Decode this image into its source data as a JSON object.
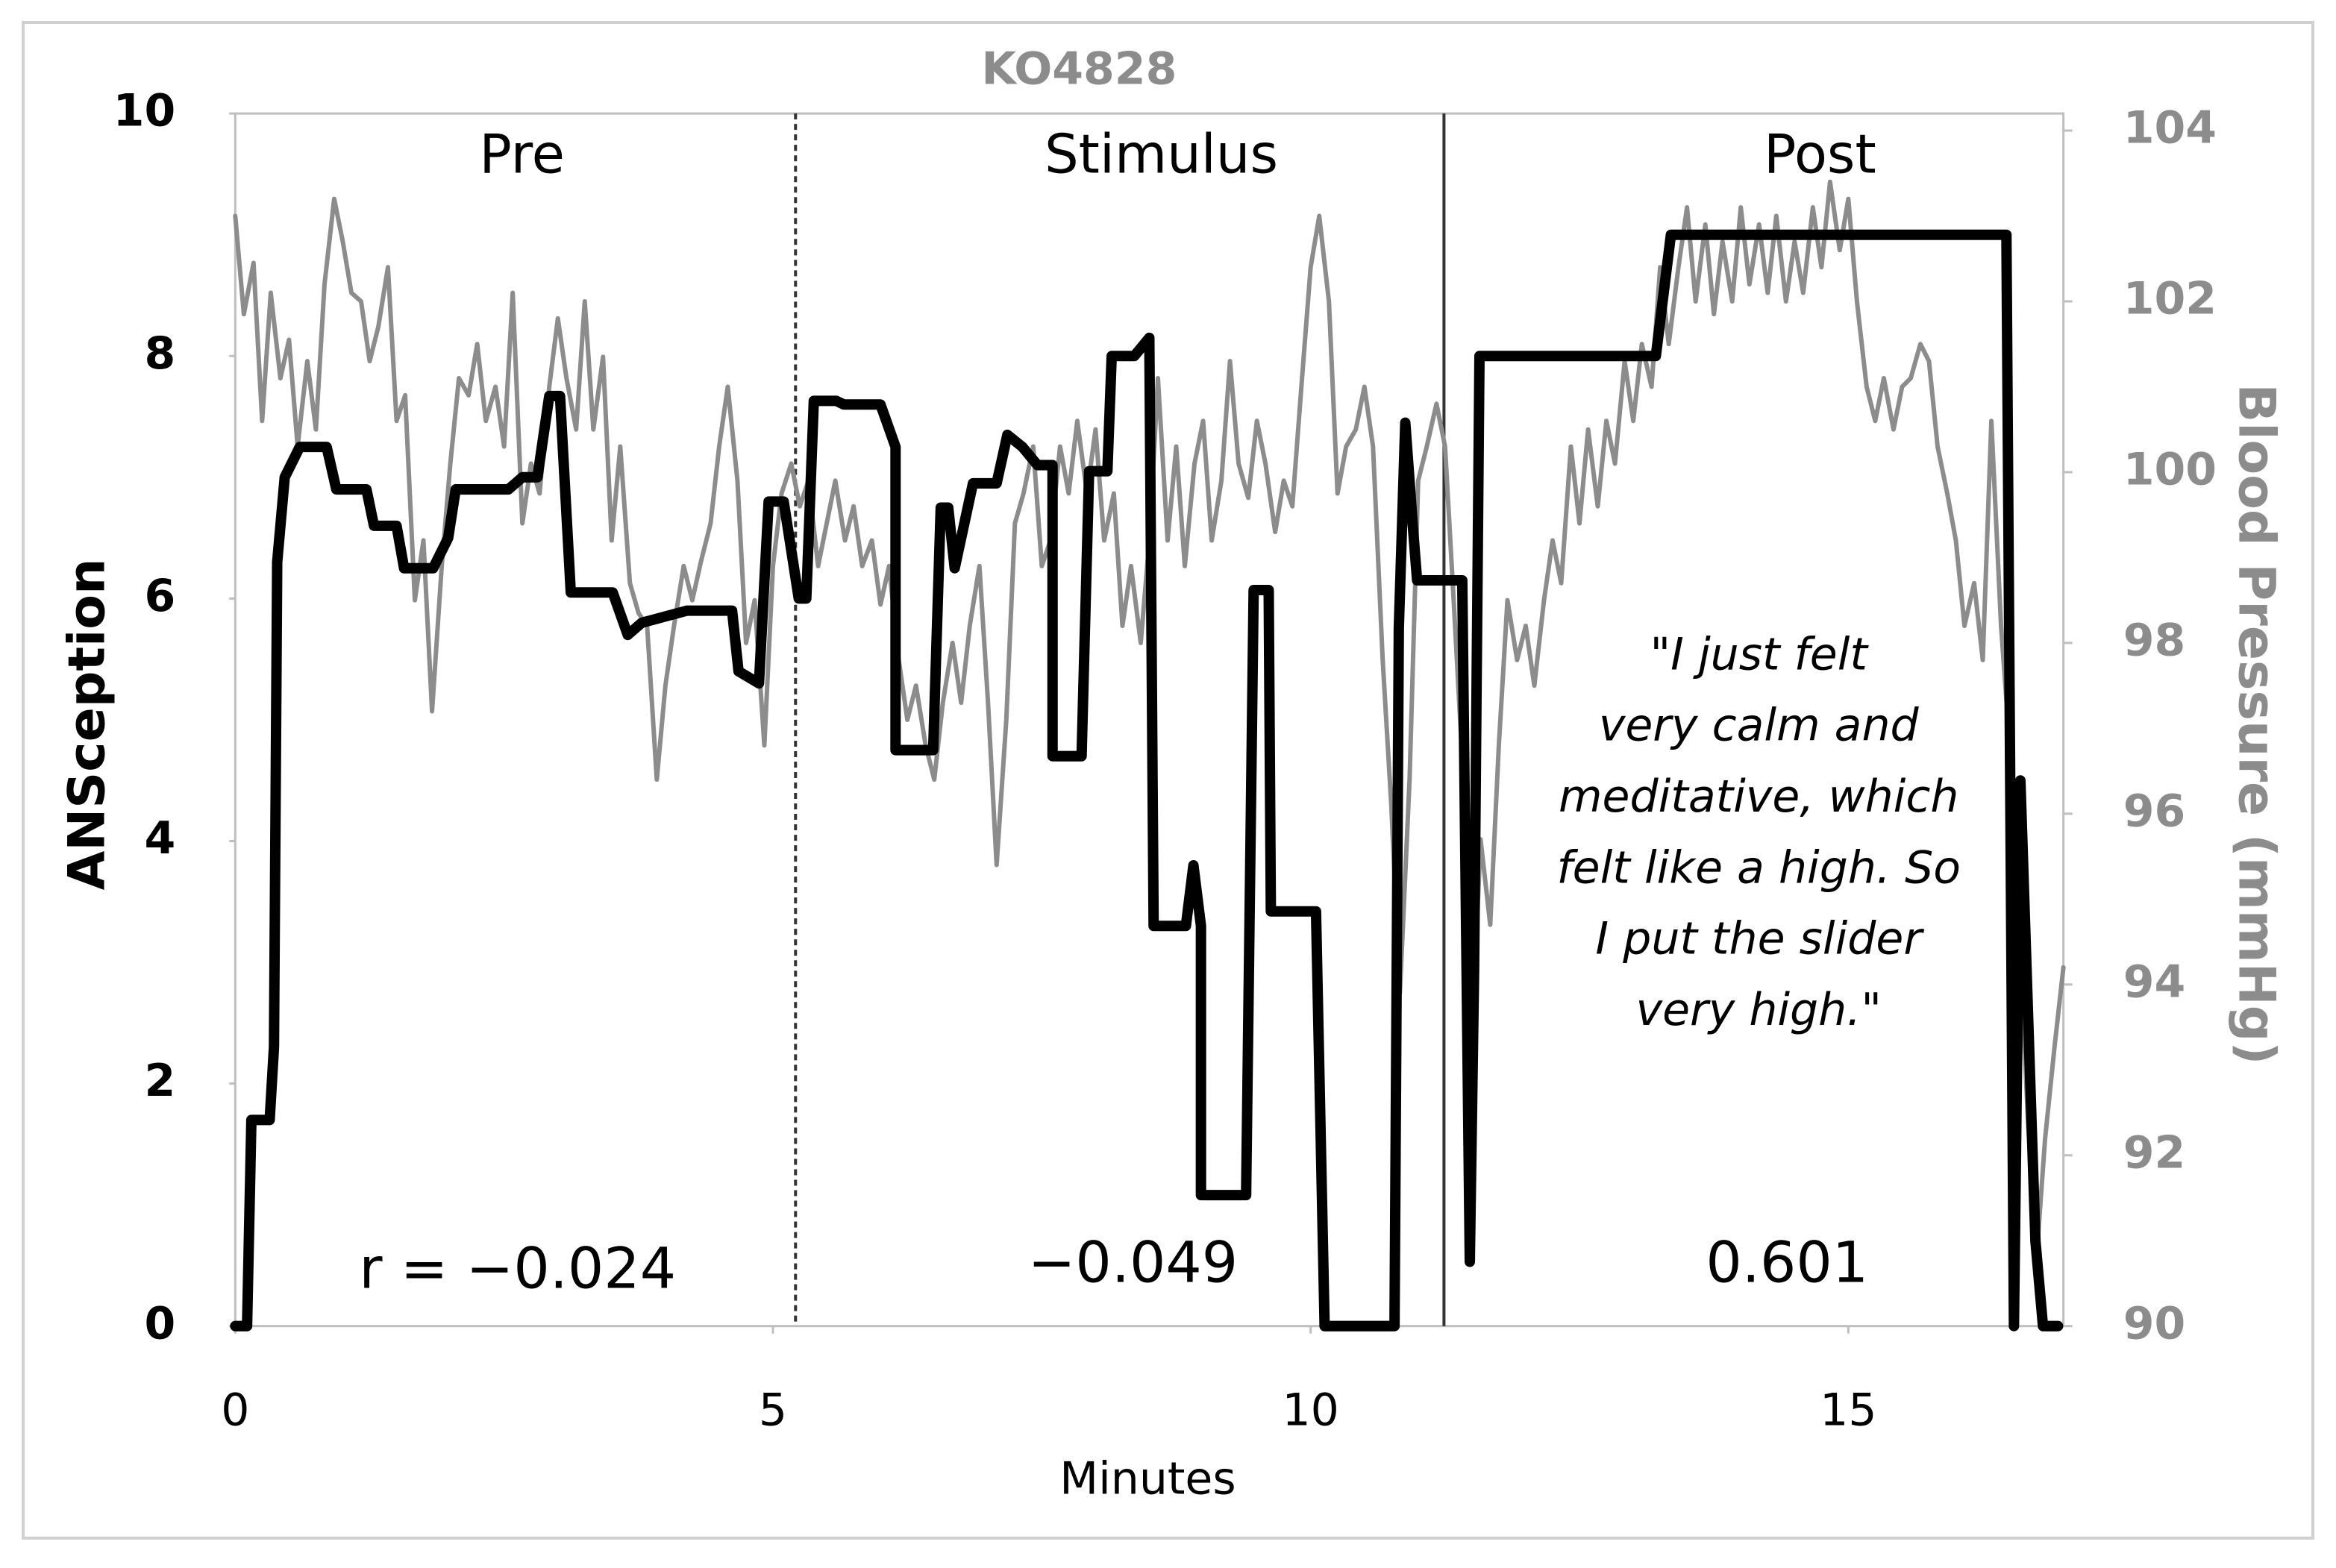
{
  "chart_data": {
    "type": "line",
    "title": "KO4828",
    "xlabel": "Minutes",
    "ylabel": "ANSception",
    "y2label": "Blood Pressure (mmHg)",
    "xlim": [
      0,
      17
    ],
    "xticks": [
      0,
      5,
      10,
      15
    ],
    "ylim": [
      0,
      10
    ],
    "yticks": [
      0,
      2,
      4,
      6,
      8,
      10
    ],
    "y2lim": [
      90,
      104.2
    ],
    "y2ticks": [
      90,
      92,
      94,
      96,
      98,
      100,
      102,
      104
    ],
    "phases": [
      "Pre",
      "Stimulus",
      "Post"
    ],
    "phase_boundaries": [
      5.21,
      11.24
    ],
    "correlations": [
      {
        "value": -0.024,
        "label": "r =  −0.024"
      },
      {
        "value": -0.049,
        "label": "−0.049"
      },
      {
        "value": 0.601,
        "label": "0.601"
      }
    ],
    "quote": [
      "\"I just felt",
      "very calm and",
      "meditative, which",
      "felt like a high. So",
      "I put the slider",
      "very high.\""
    ],
    "series": [
      {
        "color": "#000000",
        "x": [
          0,
          0.11,
          0.15,
          0.32,
          0.36,
          0.39,
          0.46,
          0.6,
          0.85,
          0.94,
          1.22,
          1.29,
          1.5,
          1.57,
          1.84,
          1.98,
          2.05,
          2.54,
          2.67,
          2.81,
          2.92,
          3.02,
          3.12,
          3.51,
          3.65,
          3.78,
          4.2,
          4.62,
          4.68,
          4.87,
          4.96,
          5.1,
          5.24,
          5.31,
          5.38,
          5.59,
          5.66,
          6.0,
          6.14,
          6.14,
          6.49,
          6.56,
          6.63,
          6.69,
          6.86,
          7.08,
          7.18,
          7.32,
          7.46,
          7.6,
          7.6,
          7.87,
          7.94,
          8.11,
          8.15,
          8.36,
          8.5,
          8.54,
          8.84,
          8.91,
          8.98,
          8.98,
          9.4,
          9.47,
          9.61,
          9.63,
          10.05,
          10.13,
          10.78,
          10.82,
          10.88,
          10.95,
          10.99,
          11.41,
          11.48,
          11.52,
          11.57,
          13.21,
          13.35,
          16.47,
          16.54,
          16.6,
          16.74,
          16.81,
          16.95
        ],
        "values": [
          0,
          0,
          1.7,
          1.7,
          2.3,
          6.3,
          7.0,
          7.25,
          7.25,
          6.9,
          6.9,
          6.6,
          6.6,
          6.25,
          6.25,
          6.5,
          6.9,
          6.9,
          7.0,
          7.0,
          7.67,
          7.67,
          6.05,
          6.05,
          5.7,
          5.8,
          5.9,
          5.9,
          5.4,
          5.3,
          6.8,
          6.8,
          6.0,
          6.0,
          7.63,
          7.63,
          7.6,
          7.6,
          7.25,
          4.75,
          4.75,
          6.75,
          6.75,
          6.25,
          6.95,
          6.95,
          7.35,
          7.25,
          7.1,
          7.1,
          4.7,
          4.7,
          7.05,
          7.05,
          8.0,
          8.0,
          8.15,
          3.3,
          3.3,
          3.8,
          3.3,
          1.08,
          1.08,
          6.07,
          6.07,
          3.42,
          3.42,
          0,
          0,
          5.76,
          7.45,
          6.6,
          6.15,
          6.15,
          0.53,
          2.93,
          8.0,
          8.0,
          9.0,
          9.0,
          0,
          4.5,
          0.7,
          0,
          0
        ]
      },
      {
        "color": "#8c8c8c",
        "axis": "y2",
        "x": [
          0,
          0.08,
          0.17,
          0.25,
          0.33,
          0.42,
          0.5,
          0.58,
          0.67,
          0.75,
          0.83,
          0.92,
          1,
          1.08,
          1.17,
          1.25,
          1.33,
          1.42,
          1.5,
          1.58,
          1.67,
          1.75,
          1.83,
          1.92,
          2,
          2.08,
          2.17,
          2.25,
          2.33,
          2.42,
          2.5,
          2.58,
          2.67,
          2.75,
          2.83,
          2.92,
          3,
          3.08,
          3.17,
          3.25,
          3.33,
          3.42,
          3.5,
          3.58,
          3.67,
          3.75,
          3.83,
          3.92,
          4,
          4.08,
          4.17,
          4.25,
          4.33,
          4.42,
          4.5,
          4.58,
          4.67,
          4.75,
          4.83,
          4.92,
          5,
          5.08,
          5.17,
          5.25,
          5.33,
          5.42,
          5.5,
          5.58,
          5.67,
          5.75,
          5.83,
          5.92,
          6,
          6.08,
          6.17,
          6.25,
          6.33,
          6.42,
          6.5,
          6.58,
          6.67,
          6.75,
          6.83,
          6.92,
          7,
          7.08,
          7.17,
          7.25,
          7.33,
          7.42,
          7.5,
          7.58,
          7.67,
          7.75,
          7.83,
          7.92,
          8,
          8.08,
          8.17,
          8.25,
          8.33,
          8.42,
          8.5,
          8.58,
          8.67,
          8.75,
          8.83,
          8.92,
          9,
          9.08,
          9.17,
          9.25,
          9.33,
          9.42,
          9.5,
          9.58,
          9.67,
          9.75,
          9.83,
          9.92,
          10,
          10.08,
          10.17,
          10.25,
          10.33,
          10.42,
          10.5,
          10.58,
          10.67,
          10.75,
          10.83,
          10.92,
          11,
          11.08,
          11.17,
          11.25,
          11.33,
          11.42,
          11.5,
          11.58,
          11.67,
          11.75,
          11.83,
          11.92,
          12,
          12.08,
          12.17,
          12.25,
          12.33,
          12.42,
          12.5,
          12.58,
          12.67,
          12.75,
          12.83,
          12.92,
          13,
          13.08,
          13.17,
          13.25,
          13.33,
          13.42,
          13.5,
          13.58,
          13.67,
          13.75,
          13.83,
          13.92,
          14,
          14.08,
          14.17,
          14.25,
          14.33,
          14.42,
          14.5,
          14.58,
          14.67,
          14.75,
          14.83,
          14.92,
          15,
          15.08,
          15.17,
          15.25,
          15.33,
          15.42,
          15.5,
          15.58,
          15.67,
          15.75,
          15.83,
          15.92,
          16,
          16.08,
          16.17,
          16.25,
          16.33,
          16.42,
          16.5,
          16.58,
          16.67,
          16.75,
          16.83,
          16.92,
          17
        ],
        "values": [
          103.0,
          101.85,
          102.45,
          100.6,
          102.1,
          101.1,
          101.55,
          100.3,
          101.3,
          100.5,
          102.2,
          103.2,
          102.7,
          102.1,
          102.0,
          101.3,
          101.7,
          102.4,
          100.6,
          100.9,
          98.5,
          99.2,
          97.2,
          98.9,
          100.1,
          101.1,
          100.9,
          101.5,
          100.6,
          101.0,
          100.3,
          102.1,
          99.4,
          100.1,
          99.75,
          101.0,
          101.8,
          101.1,
          100.5,
          102.0,
          100.5,
          101.35,
          99.2,
          100.3,
          98.7,
          98.35,
          98.2,
          96.4,
          97.5,
          98.2,
          98.9,
          98.5,
          98.95,
          99.4,
          100.3,
          101.0,
          99.9,
          98.0,
          98.5,
          96.8,
          98.9,
          99.75,
          100.1,
          99.6,
          99.9,
          98.9,
          99.4,
          99.9,
          99.2,
          99.6,
          98.9,
          99.2,
          98.45,
          98.9,
          97.8,
          97.1,
          97.5,
          96.8,
          96.4,
          97.3,
          98.0,
          97.3,
          98.2,
          98.9,
          97.3,
          95.4,
          97.1,
          99.4,
          99.75,
          100.3,
          98.9,
          99.2,
          100.3,
          99.75,
          100.6,
          99.75,
          100.5,
          99.2,
          99.75,
          98.2,
          98.9,
          98.0,
          99.2,
          101.1,
          99.2,
          100.3,
          98.9,
          100.1,
          100.6,
          99.2,
          99.9,
          101.3,
          100.1,
          99.7,
          100.6,
          100.1,
          99.3,
          99.9,
          99.6,
          101.1,
          102.4,
          103.0,
          102.0,
          99.75,
          100.3,
          100.5,
          101.0,
          100.3,
          97.8,
          96.1,
          93.9,
          96.4,
          99.9,
          100.3,
          100.8,
          100.3,
          98.5,
          96.4,
          93.3,
          95.7,
          94.7,
          96.8,
          98.5,
          97.8,
          98.2,
          97.5,
          98.5,
          99.2,
          98.7,
          100.3,
          99.4,
          100.5,
          99.6,
          100.6,
          100.1,
          101.3,
          100.6,
          101.5,
          101.0,
          102.4,
          101.5,
          102.4,
          103.1,
          102.0,
          102.9,
          101.85,
          102.7,
          102.0,
          103.1,
          102.2,
          102.9,
          102.1,
          103.0,
          102.0,
          102.7,
          102.1,
          103.1,
          102.4,
          103.4,
          102.6,
          103.2,
          102.0,
          101.0,
          100.6,
          101.1,
          100.5,
          101.0,
          101.1,
          101.5,
          101.3,
          100.3,
          99.75,
          99.2,
          98.2,
          98.7,
          97.8,
          100.6,
          98.2,
          96.8,
          95.0,
          92.4,
          90.8,
          92.2,
          93.3,
          94.2
        ]
      }
    ]
  }
}
